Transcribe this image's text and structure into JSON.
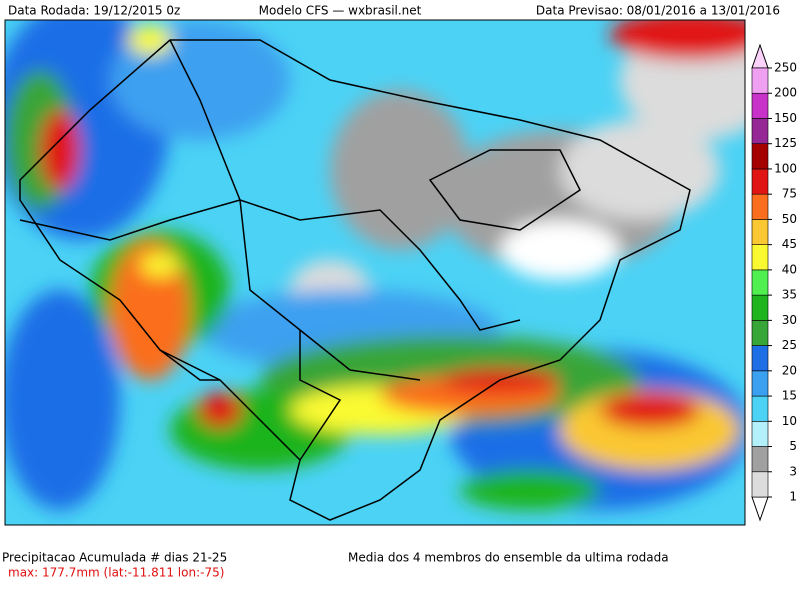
{
  "header": {
    "left": "Data Rodada: 19/12/2015 0z",
    "center": "Modelo CFS — wxbrasil.net",
    "right": "Data Previsao: 08/01/2016 a 13/01/2016"
  },
  "legend": {
    "levels": [
      1,
      3,
      5,
      10,
      15,
      20,
      25,
      30,
      35,
      40,
      45,
      50,
      75,
      100,
      125,
      150,
      200,
      250
    ],
    "colors": [
      "#dcdcdc",
      "#a0a0a0",
      "#b4f0fa",
      "#4bd2f5",
      "#3ca0f0",
      "#1e6ee6",
      "#37a537",
      "#1eb41e",
      "#50f050",
      "#fafa32",
      "#fac832",
      "#fa6e1e",
      "#e11414",
      "#a50000",
      "#962896",
      "#c832c8",
      "#f0a0f0"
    ]
  },
  "footer": {
    "title": "Precipitacao Acumulada # dias 21-25",
    "max": "max: 177.7mm (lat:-11.811 lon:-75)",
    "note": "Media dos 4 membros do ensemble da ultima rodada"
  }
}
